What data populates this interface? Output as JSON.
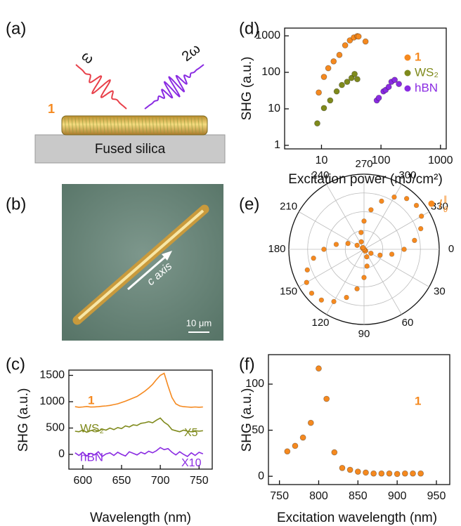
{
  "panels": {
    "a": {
      "label": "(a)",
      "omega": "ω",
      "two_omega": "2ω",
      "sample": "1",
      "substrate": "Fused silica"
    },
    "b": {
      "label": "(b)",
      "axis_label": "c axis",
      "scale_bar": "10 μm"
    }
  },
  "chart_data": [
    {
      "type": "line",
      "label": "(c)",
      "xlabel": "Wavelength (nm)",
      "ylabel": "SHG (a.u.)",
      "x": [
        590,
        595,
        600,
        605,
        610,
        615,
        620,
        625,
        630,
        635,
        640,
        645,
        650,
        655,
        660,
        665,
        670,
        675,
        680,
        685,
        690,
        695,
        700,
        705,
        710,
        715,
        720,
        725,
        730,
        735,
        740,
        745,
        750,
        755
      ],
      "series": [
        {
          "name": "1",
          "color": "#f5891f",
          "values": [
            905,
            895,
            900,
            910,
            898,
            902,
            905,
            915,
            920,
            930,
            945,
            960,
            985,
            1010,
            1040,
            1070,
            1100,
            1150,
            1200,
            1260,
            1330,
            1420,
            1500,
            1540,
            1300,
            1080,
            960,
            920,
            905,
            900,
            895,
            900,
            895,
            900
          ]
        },
        {
          "name": "WS₂",
          "color": "#7f8a1c",
          "multiplier": "X5",
          "values": [
            440,
            430,
            460,
            420,
            450,
            470,
            440,
            480,
            460,
            500,
            470,
            510,
            490,
            540,
            520,
            560,
            550,
            590,
            600,
            620,
            600,
            650,
            690,
            610,
            560,
            470,
            450,
            430,
            460,
            440,
            430,
            450,
            440,
            450
          ]
        },
        {
          "name": "hBN",
          "color": "#8a2be2",
          "multiplier": "X10",
          "values": [
            30,
            -20,
            40,
            -30,
            20,
            -10,
            50,
            -40,
            10,
            30,
            -20,
            40,
            0,
            -30,
            50,
            20,
            -10,
            40,
            10,
            60,
            30,
            70,
            130,
            90,
            110,
            40,
            -10,
            50,
            0,
            -40,
            30,
            -20,
            40,
            10
          ]
        }
      ],
      "xlim": [
        582,
        767
      ],
      "xticks": [
        600,
        650,
        700,
        750
      ],
      "ylim": [
        -280,
        1600
      ],
      "yticks": [
        0,
        500,
        1000,
        1500
      ]
    },
    {
      "type": "scatter",
      "label": "(d)",
      "xlabel": "Excitation power (mJ/cm²)",
      "ylabel": "SHG (a.u.)",
      "xscale": "log",
      "yscale": "log",
      "legend": "top-right",
      "series": [
        {
          "name": "1",
          "color": "#f5891f",
          "x": [
            9,
            11,
            13,
            16,
            20,
            25,
            30,
            35,
            40,
            42,
            55
          ],
          "values": [
            28,
            75,
            130,
            200,
            300,
            550,
            750,
            900,
            980,
            960,
            700
          ]
        },
        {
          "name": "WS₂",
          "color": "#7f8a1c",
          "x": [
            8.5,
            11,
            14,
            18,
            22,
            27,
            32,
            36,
            40
          ],
          "values": [
            4,
            10.5,
            17,
            30,
            45,
            55,
            70,
            90,
            65
          ]
        },
        {
          "name": "hBN",
          "color": "#8a2be2",
          "x": [
            85,
            92,
            110,
            120,
            135,
            150,
            170,
            200
          ],
          "values": [
            17,
            20,
            30,
            33,
            40,
            55,
            62,
            48
          ]
        }
      ],
      "xlim": [
        2.4,
        1250
      ],
      "xticks": [
        10,
        100,
        1000
      ],
      "ylim": [
        0.8,
        1630
      ],
      "yticks": [
        1,
        10,
        100,
        1000
      ]
    },
    {
      "type": "polar",
      "label": "(e)",
      "legend": "top-right",
      "theta": [
        0,
        10,
        20,
        30,
        40,
        50,
        60,
        70,
        80,
        90,
        100,
        110,
        120,
        130,
        140,
        150,
        160,
        170,
        180,
        190,
        200,
        210,
        220,
        230,
        240,
        250,
        260,
        270,
        280,
        290,
        300,
        310,
        320,
        330,
        340,
        350
      ],
      "series": [
        {
          "name": "I",
          "name_sub": "θ",
          "name_sup": "∥",
          "color": "#f5891f",
          "values": [
            0.587,
            0.413,
            0.25,
            0.117,
            0.03,
            0,
            0.03,
            0.117,
            0.25,
            0.413,
            0.587,
            0.75,
            0.883,
            0.97,
            1,
            0.97,
            0.883,
            0.75,
            0.587,
            0.413,
            0.25,
            0.117,
            0.03,
            0,
            0.03,
            0.117,
            0.25,
            0.413,
            0.587,
            0.75,
            0.883,
            0.97,
            1,
            0.97,
            0.883,
            0.75
          ]
        }
      ],
      "rlim": [
        0,
        1.1
      ],
      "thetaticks": [
        0,
        30,
        60,
        90,
        120,
        150,
        180,
        210,
        240,
        270,
        300,
        330
      ]
    },
    {
      "type": "scatter",
      "label": "(f)",
      "xlabel": "Excitation wavelength (nm)",
      "ylabel": "SHG (a.u.)",
      "series": [
        {
          "name": "1",
          "color": "#f5891f",
          "x": [
            760,
            770,
            780,
            790,
            800,
            810,
            820,
            830,
            840,
            850,
            860,
            870,
            880,
            890,
            900,
            910,
            920,
            930
          ],
          "values": [
            27,
            33,
            42,
            58,
            117,
            84,
            26,
            9,
            7,
            5,
            4,
            3,
            3,
            3,
            2.5,
            3,
            3,
            3
          ]
        }
      ],
      "xlim": [
        736,
        967
      ],
      "xticks": [
        750,
        800,
        850,
        900,
        950
      ],
      "ylim": [
        -9,
        132
      ],
      "yticks": [
        0,
        50,
        100
      ]
    }
  ]
}
